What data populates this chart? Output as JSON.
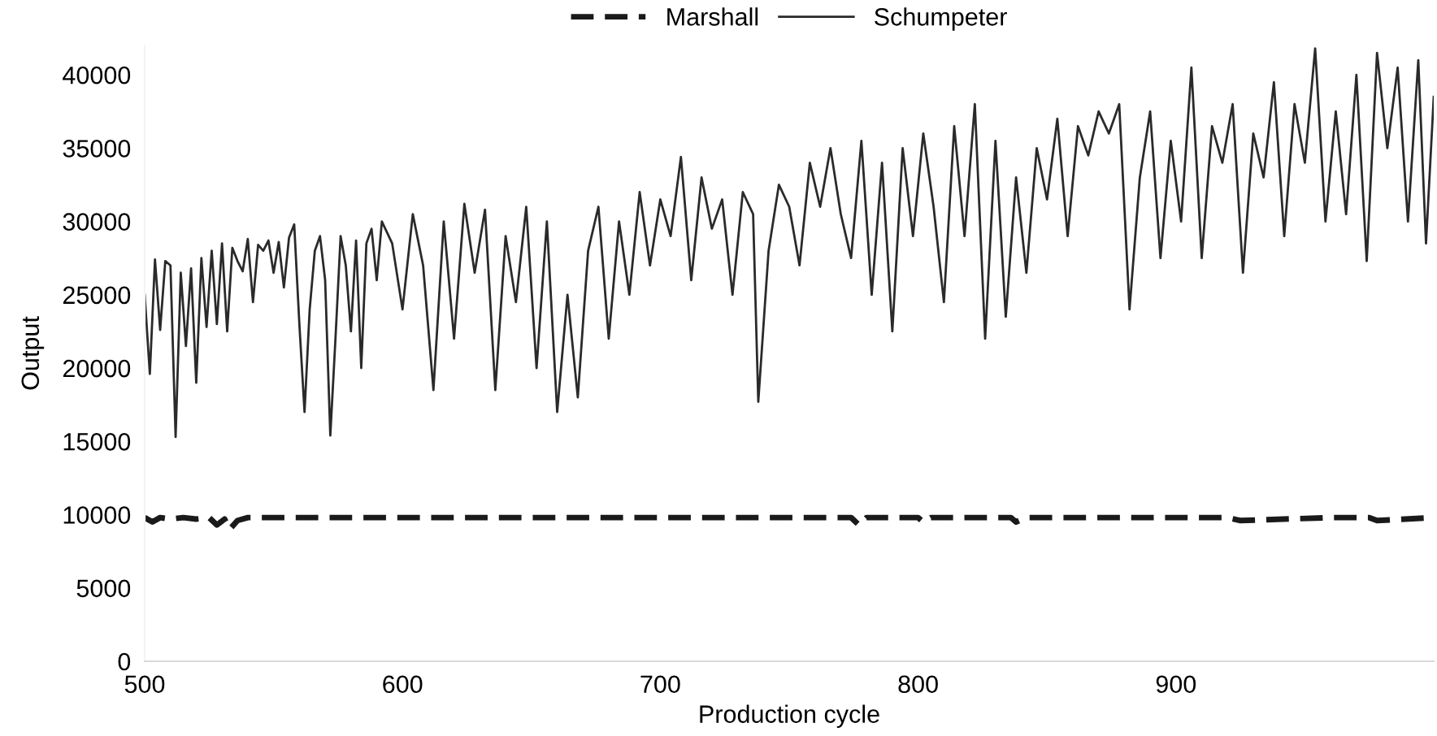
{
  "chart_data": {
    "type": "line",
    "xlabel": "Production cycle",
    "ylabel": "Output",
    "xlim": [
      500,
      1000
    ],
    "xticks": [
      500,
      600,
      700,
      800,
      900
    ],
    "ylim": [
      0,
      42000
    ],
    "yticks": [
      0,
      5000,
      10000,
      15000,
      20000,
      25000,
      30000,
      35000,
      40000
    ],
    "grid": false,
    "legend": "top",
    "marker": "none",
    "series": [
      {
        "name": "Marshall",
        "color": "#1a1a1a",
        "line_style": "dashed",
        "x": [
          500,
          503,
          506,
          510,
          515,
          520,
          525,
          528,
          531,
          533,
          536,
          540,
          560,
          600,
          700,
          774,
          777,
          780,
          800,
          802,
          805,
          810,
          836,
          838,
          842,
          880,
          900,
          920,
          925,
          960,
          975,
          978,
          1000
        ],
        "values": [
          9800,
          9500,
          9800,
          9700,
          9800,
          9700,
          9800,
          9300,
          9700,
          9000,
          9600,
          9800,
          9800,
          9800,
          9800,
          9800,
          9300,
          9800,
          9800,
          9500,
          9800,
          9800,
          9800,
          9500,
          9800,
          9800,
          9800,
          9800,
          9600,
          9800,
          9800,
          9600,
          9800
        ]
      },
      {
        "name": "Schumpeter",
        "color": "#2a2a2a",
        "line_style": "solid",
        "x": [
          500,
          502,
          504,
          506,
          508,
          510,
          512,
          514,
          516,
          518,
          520,
          522,
          524,
          526,
          528,
          530,
          532,
          534,
          536,
          538,
          540,
          542,
          544,
          546,
          548,
          550,
          552,
          554,
          556,
          558,
          560,
          562,
          564,
          566,
          568,
          570,
          572,
          574,
          576,
          578,
          580,
          582,
          584,
          586,
          588,
          590,
          592,
          596,
          600,
          604,
          608,
          612,
          616,
          620,
          624,
          628,
          632,
          636,
          640,
          644,
          648,
          652,
          656,
          660,
          664,
          668,
          672,
          676,
          680,
          684,
          688,
          692,
          696,
          700,
          704,
          708,
          712,
          716,
          720,
          724,
          728,
          732,
          736,
          738,
          742,
          746,
          750,
          754,
          758,
          762,
          766,
          770,
          774,
          778,
          782,
          786,
          790,
          794,
          798,
          802,
          806,
          810,
          814,
          818,
          822,
          826,
          830,
          834,
          838,
          842,
          846,
          850,
          854,
          858,
          862,
          866,
          870,
          874,
          878,
          882,
          886,
          890,
          894,
          898,
          902,
          906,
          910,
          914,
          918,
          922,
          926,
          930,
          934,
          938,
          942,
          946,
          950,
          954,
          958,
          962,
          966,
          970,
          974,
          978,
          982,
          986,
          990,
          994,
          997,
          1000
        ],
        "values": [
          25000,
          19600,
          27400,
          22600,
          27300,
          27000,
          15300,
          26500,
          21500,
          26800,
          19000,
          27500,
          22800,
          28000,
          23000,
          28500,
          22500,
          28200,
          27300,
          26600,
          28800,
          24500,
          28400,
          28000,
          28700,
          26500,
          28600,
          25500,
          28900,
          29800,
          23000,
          17000,
          24000,
          28000,
          29000,
          26000,
          15400,
          22000,
          29000,
          27000,
          22500,
          28700,
          20000,
          28500,
          29500,
          26000,
          30000,
          28500,
          24000,
          30500,
          27000,
          18500,
          30000,
          22000,
          31200,
          26500,
          30800,
          18500,
          29000,
          24500,
          31000,
          20000,
          30000,
          17000,
          25000,
          18000,
          28000,
          31000,
          22000,
          30000,
          25000,
          32000,
          27000,
          31500,
          29000,
          34400,
          26000,
          33000,
          29500,
          31500,
          25000,
          32000,
          30500,
          17700,
          28000,
          32500,
          31000,
          27000,
          34000,
          31000,
          35000,
          30500,
          27500,
          35500,
          25000,
          34000,
          22500,
          35000,
          29000,
          36000,
          31000,
          24500,
          36500,
          29000,
          38000,
          22000,
          35500,
          23500,
          33000,
          26500,
          35000,
          31500,
          37000,
          29000,
          36500,
          34500,
          37500,
          36000,
          38000,
          24000,
          33000,
          37500,
          27500,
          35500,
          30000,
          40500,
          27500,
          36500,
          34000,
          38000,
          26500,
          36000,
          33000,
          39500,
          29000,
          38000,
          34000,
          41800,
          30000,
          37500,
          30500,
          40000,
          27300,
          41500,
          35000,
          40500,
          30000,
          41000,
          28500,
          38500
        ]
      }
    ]
  }
}
